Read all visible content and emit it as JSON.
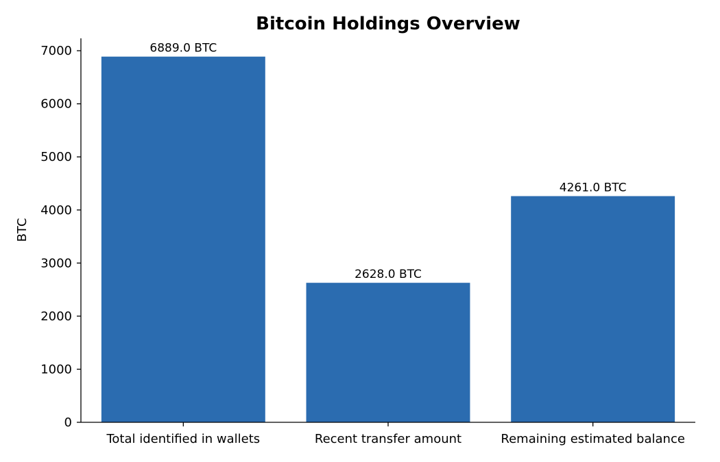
{
  "chart_data": {
    "type": "bar",
    "title": "Bitcoin Holdings Overview",
    "xlabel": "",
    "ylabel": "BTC",
    "categories": [
      "Total identified in wallets",
      "Recent transfer amount",
      "Remaining estimated balance"
    ],
    "values": [
      6889.0,
      2628.0,
      4261.0
    ],
    "data_labels": [
      "6889.0 BTC",
      "2628.0 BTC",
      "4261.0 BTC"
    ],
    "ylim": [
      0,
      7233.45
    ],
    "yticks": [
      0,
      1000,
      2000,
      3000,
      4000,
      5000,
      6000,
      7000
    ],
    "grid": false,
    "legend": "none",
    "bar_color": "#2b6cb0"
  }
}
